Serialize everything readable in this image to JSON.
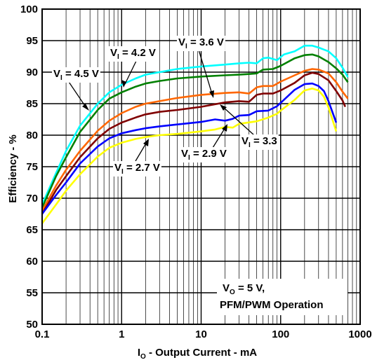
{
  "chart_data": {
    "type": "line",
    "x_scale": "log",
    "xlim": [
      0.1,
      1000
    ],
    "ylim": [
      50,
      100
    ],
    "grid": true,
    "xlabel": {
      "main": "I",
      "sub": "O",
      "rest": " - Output Current - mA"
    },
    "ylabel": "Efficiency - %",
    "x_ticks": [
      "0.1",
      "1",
      "10",
      "100",
      "1000"
    ],
    "y_ticks": [
      "50",
      "55",
      "60",
      "65",
      "70",
      "75",
      "80",
      "85",
      "90",
      "95",
      "100"
    ],
    "series": [
      {
        "name": "VI = 4.5 V",
        "color": "#00ffff",
        "points": [
          [
            0.1,
            69
          ],
          [
            0.15,
            74
          ],
          [
            0.2,
            77.5
          ],
          [
            0.3,
            81.5
          ],
          [
            0.5,
            85
          ],
          [
            0.7,
            86.8
          ],
          [
            1,
            88
          ],
          [
            1.5,
            89
          ],
          [
            2,
            89.6
          ],
          [
            3,
            90
          ],
          [
            5,
            90.5
          ],
          [
            10,
            90.9
          ],
          [
            20,
            91.2
          ],
          [
            30,
            91.4
          ],
          [
            40,
            91.5
          ],
          [
            50,
            91.4
          ],
          [
            60,
            92.2
          ],
          [
            70,
            92.3
          ],
          [
            90,
            91.9
          ],
          [
            110,
            92.8
          ],
          [
            150,
            93.3
          ],
          [
            200,
            94.2
          ],
          [
            250,
            94.2
          ],
          [
            300,
            93.9
          ],
          [
            400,
            93.3
          ],
          [
            500,
            92.2
          ],
          [
            600,
            90.7
          ],
          [
            700,
            89.2
          ]
        ]
      },
      {
        "name": "VI = 4.2 V",
        "color": "#008000",
        "points": [
          [
            0.1,
            68.5
          ],
          [
            0.15,
            73.5
          ],
          [
            0.2,
            76.5
          ],
          [
            0.3,
            80.5
          ],
          [
            0.5,
            84
          ],
          [
            0.7,
            85.8
          ],
          [
            1,
            86.8
          ],
          [
            1.5,
            87.7
          ],
          [
            2,
            88.2
          ],
          [
            3,
            88.6
          ],
          [
            5,
            89
          ],
          [
            10,
            89.3
          ],
          [
            20,
            89.5
          ],
          [
            30,
            89.6
          ],
          [
            40,
            89.7
          ],
          [
            50,
            89.8
          ],
          [
            60,
            90.4
          ],
          [
            80,
            90.5
          ],
          [
            100,
            91
          ],
          [
            150,
            92.2
          ],
          [
            200,
            92.7
          ],
          [
            250,
            92.8
          ],
          [
            300,
            92.5
          ],
          [
            400,
            91.6
          ],
          [
            500,
            90.6
          ],
          [
            600,
            89.6
          ],
          [
            700,
            88.4
          ]
        ]
      },
      {
        "name": "VI = 3.6 V",
        "color": "#ff6600",
        "points": [
          [
            0.1,
            68
          ],
          [
            0.15,
            72
          ],
          [
            0.2,
            74.5
          ],
          [
            0.3,
            77.5
          ],
          [
            0.5,
            80.7
          ],
          [
            0.7,
            82.3
          ],
          [
            1,
            83.5
          ],
          [
            1.5,
            84.5
          ],
          [
            2,
            85
          ],
          [
            3,
            85.4
          ],
          [
            5,
            85.9
          ],
          [
            10,
            86.4
          ],
          [
            20,
            86.7
          ],
          [
            30,
            86.8
          ],
          [
            40,
            86.6
          ],
          [
            50,
            87.6
          ],
          [
            60,
            87.8
          ],
          [
            80,
            87.8
          ],
          [
            100,
            88.5
          ],
          [
            150,
            89.5
          ],
          [
            200,
            90.2
          ],
          [
            250,
            90.5
          ],
          [
            300,
            90.4
          ],
          [
            400,
            89.8
          ],
          [
            500,
            88.4
          ],
          [
            600,
            86.9
          ],
          [
            700,
            85.8
          ]
        ]
      },
      {
        "name": "VI = 3.3",
        "color": "#800000",
        "points": [
          [
            0.1,
            67.5
          ],
          [
            0.15,
            71.3
          ],
          [
            0.2,
            73.5
          ],
          [
            0.3,
            76.5
          ],
          [
            0.5,
            79.5
          ],
          [
            0.7,
            81
          ],
          [
            1,
            82
          ],
          [
            1.5,
            82.8
          ],
          [
            2,
            83.3
          ],
          [
            3,
            83.7
          ],
          [
            5,
            84
          ],
          [
            10,
            84.5
          ],
          [
            20,
            85.2
          ],
          [
            30,
            85.4
          ],
          [
            40,
            85.3
          ],
          [
            50,
            86.4
          ],
          [
            60,
            86.6
          ],
          [
            80,
            86.6
          ],
          [
            100,
            87.1
          ],
          [
            150,
            88.3
          ],
          [
            200,
            89.5
          ],
          [
            250,
            89.9
          ],
          [
            300,
            89.7
          ],
          [
            400,
            88.7
          ],
          [
            500,
            87
          ],
          [
            600,
            85.5
          ],
          [
            650,
            84.5
          ]
        ]
      },
      {
        "name": "VI = 2.9 V",
        "color": "#0000ff",
        "points": [
          [
            0.1,
            67.5
          ],
          [
            0.15,
            70.5
          ],
          [
            0.2,
            72.5
          ],
          [
            0.3,
            75.5
          ],
          [
            0.5,
            78.2
          ],
          [
            0.7,
            79.5
          ],
          [
            1,
            80.3
          ],
          [
            1.5,
            80.8
          ],
          [
            2,
            81.1
          ],
          [
            3,
            81.4
          ],
          [
            5,
            81.7
          ],
          [
            10,
            82.1
          ],
          [
            15,
            82.5
          ],
          [
            20,
            82.3
          ],
          [
            25,
            82.6
          ],
          [
            30,
            83.1
          ],
          [
            40,
            83.2
          ],
          [
            50,
            83.8
          ],
          [
            70,
            83.9
          ],
          [
            90,
            84.6
          ],
          [
            110,
            85.6
          ],
          [
            150,
            87.2
          ],
          [
            200,
            88.1
          ],
          [
            250,
            88.2
          ],
          [
            300,
            87.8
          ],
          [
            350,
            87
          ],
          [
            400,
            85.4
          ],
          [
            450,
            83.6
          ],
          [
            500,
            82
          ]
        ]
      },
      {
        "name": "VI = 2.7 V",
        "color": "#ffff00",
        "points": [
          [
            0.1,
            66
          ],
          [
            0.15,
            69
          ],
          [
            0.2,
            71.2
          ],
          [
            0.3,
            73.8
          ],
          [
            0.5,
            76.6
          ],
          [
            0.7,
            78
          ],
          [
            1,
            78.8
          ],
          [
            1.5,
            79.4
          ],
          [
            2,
            79.7
          ],
          [
            3,
            80
          ],
          [
            5,
            80.2
          ],
          [
            10,
            80.6
          ],
          [
            15,
            80.9
          ],
          [
            20,
            81.3
          ],
          [
            25,
            81.2
          ],
          [
            30,
            81.8
          ],
          [
            50,
            82.2
          ],
          [
            70,
            82.8
          ],
          [
            90,
            83.4
          ],
          [
            100,
            83.9
          ],
          [
            150,
            85.6
          ],
          [
            200,
            87.1
          ],
          [
            250,
            87.4
          ],
          [
            300,
            87.1
          ],
          [
            350,
            86.1
          ],
          [
            400,
            84.4
          ],
          [
            450,
            82.4
          ],
          [
            500,
            80.6
          ]
        ]
      }
    ],
    "annotations": [
      {
        "main": "V",
        "sub": "I",
        "rest": " = 4.5 V"
      },
      {
        "main": "V",
        "sub": "I",
        "rest": " = 4.2 V"
      },
      {
        "main": "V",
        "sub": "I",
        "rest": " = 3.6 V"
      },
      {
        "main": "V",
        "sub": "I",
        "rest": " = 3.3"
      },
      {
        "main": "V",
        "sub": "I",
        "rest": " = 2.9 V"
      },
      {
        "main": "V",
        "sub": "I",
        "rest": " = 2.7 V"
      }
    ],
    "conditions": {
      "line1_main": "V",
      "line1_sub": "O",
      "line1_rest": " = 5 V,",
      "line2": "PFM/PWM Operation"
    }
  }
}
